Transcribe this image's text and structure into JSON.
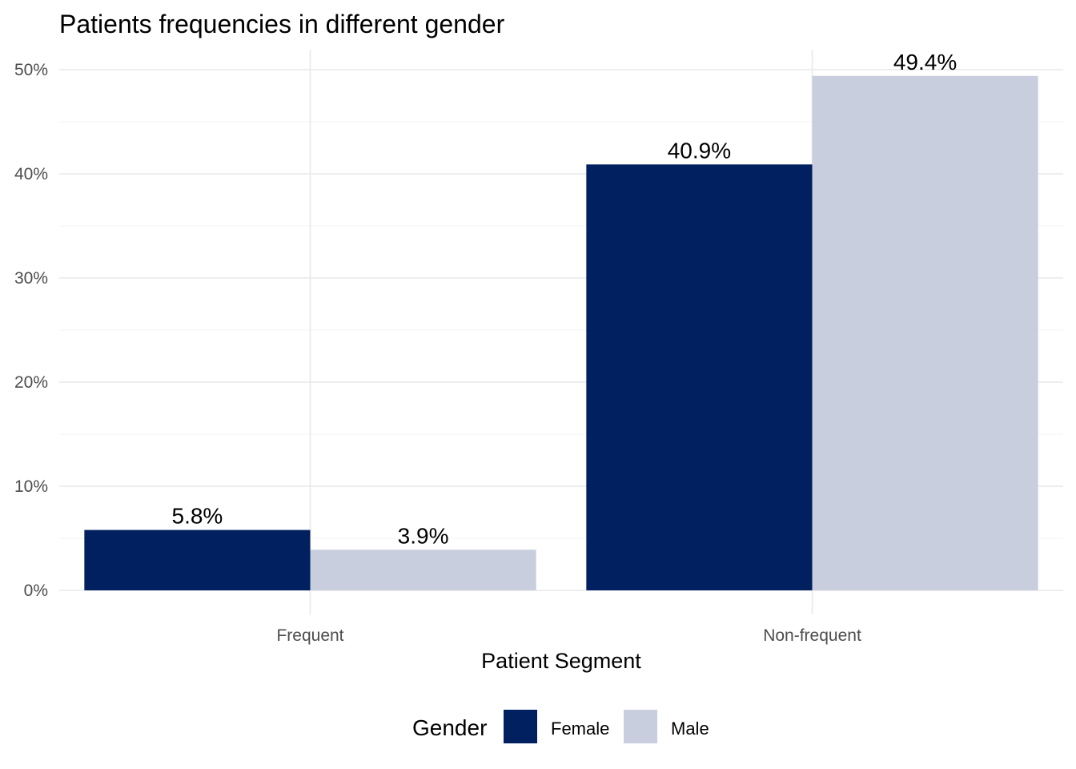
{
  "chart_data": {
    "type": "bar",
    "title": "Patients frequencies in different gender",
    "xlabel": "Patient Segment",
    "ylabel": "",
    "categories": [
      "Frequent",
      "Non-frequent"
    ],
    "series": [
      {
        "name": "Female",
        "color": "#002060",
        "values": [
          5.8,
          40.9
        ],
        "labels": [
          "5.8%",
          "40.9%"
        ]
      },
      {
        "name": "Male",
        "color": "#c8cedd",
        "values": [
          3.9,
          49.4
        ],
        "labels": [
          "3.9%",
          "49.4%"
        ]
      }
    ],
    "ylim": [
      0,
      50
    ],
    "yticks": [
      0,
      10,
      20,
      30,
      40,
      50
    ],
    "ytick_labels": [
      "0%",
      "10%",
      "20%",
      "30%",
      "40%",
      "50%"
    ],
    "grid": true,
    "legend": {
      "title": "Gender",
      "position": "bottom"
    },
    "gridline_color": "#ebebeb"
  }
}
